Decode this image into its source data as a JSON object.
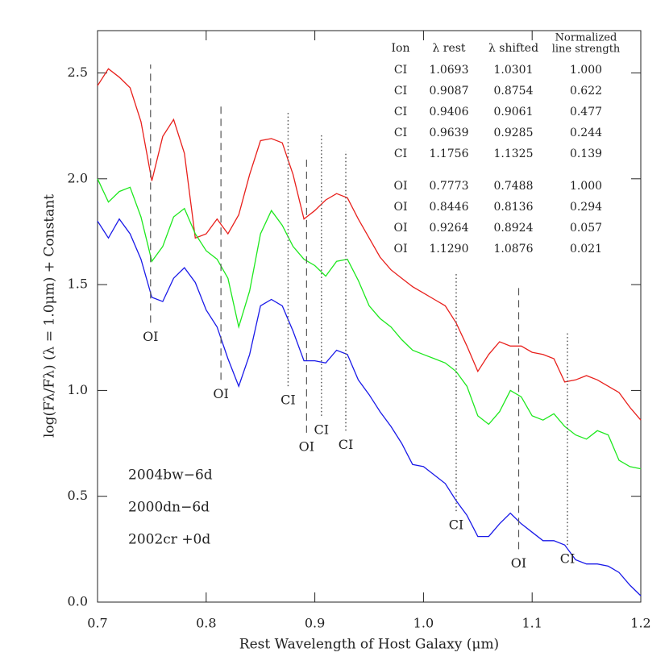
{
  "chart_data": {
    "type": "line",
    "x_label": "Rest Wavelength of Host Galaxy (μm)",
    "y_label": "log(Fλ/Fλ) (λ = 1.0μm) +  Constant",
    "xlim": [
      0.7,
      1.2
    ],
    "ylim": [
      0,
      2.7
    ],
    "xticks": [
      0.7,
      0.8,
      0.9,
      {
        "value": 1,
        "label": "1.0"
      },
      1.1,
      1.2
    ],
    "yticks": [
      {
        "value": 0,
        "label": "0.0"
      },
      0.5,
      {
        "value": 1,
        "label": "1.0"
      },
      1.5,
      {
        "value": 2,
        "label": "2.0"
      },
      2.5
    ],
    "legend": "lower left",
    "x": [
      0.7,
      0.71,
      0.72,
      0.73,
      0.74,
      0.75,
      0.76,
      0.77,
      0.78,
      0.79,
      0.8,
      0.81,
      0.82,
      0.83,
      0.84,
      0.85,
      0.86,
      0.87,
      0.88,
      0.89,
      0.9,
      0.91,
      0.92,
      0.93,
      0.94,
      0.95,
      0.96,
      0.97,
      0.98,
      0.99,
      1.0,
      1.01,
      1.02,
      1.03,
      1.04,
      1.05,
      1.06,
      1.07,
      1.08,
      1.09,
      1.1,
      1.11,
      1.12,
      1.13,
      1.14,
      1.15,
      1.16,
      1.17,
      1.18,
      1.19,
      1.2
    ],
    "series": [
      {
        "name": "2004bw−6d",
        "color": "#e8201c",
        "values": [
          2.44,
          2.52,
          2.48,
          2.43,
          2.27,
          1.99,
          2.2,
          2.28,
          2.12,
          1.72,
          1.74,
          1.81,
          1.74,
          1.83,
          2.02,
          2.18,
          2.19,
          2.17,
          2.02,
          1.81,
          1.85,
          1.9,
          1.93,
          1.91,
          1.81,
          1.72,
          1.63,
          1.57,
          1.53,
          1.49,
          1.46,
          1.43,
          1.4,
          1.32,
          1.21,
          1.09,
          1.17,
          1.23,
          1.21,
          1.21,
          1.18,
          1.17,
          1.15,
          1.04,
          1.05,
          1.07,
          1.05,
          1.02,
          0.99,
          0.92,
          0.86
        ]
      },
      {
        "name": "2000dn−6d",
        "color": "#1ee81e",
        "values": [
          2.0,
          1.89,
          1.94,
          1.96,
          1.82,
          1.61,
          1.68,
          1.82,
          1.86,
          1.74,
          1.66,
          1.62,
          1.53,
          1.3,
          1.47,
          1.74,
          1.85,
          1.78,
          1.68,
          1.62,
          1.59,
          1.54,
          1.61,
          1.62,
          1.52,
          1.4,
          1.34,
          1.3,
          1.24,
          1.19,
          1.17,
          1.15,
          1.13,
          1.09,
          1.02,
          0.88,
          0.84,
          0.9,
          1.0,
          0.97,
          0.88,
          0.86,
          0.89,
          0.83,
          0.79,
          0.77,
          0.81,
          0.79,
          0.67,
          0.64,
          0.63
        ]
      },
      {
        "name": "2002cr +0d",
        "color": "#1a1ae8",
        "values": [
          1.8,
          1.72,
          1.81,
          1.74,
          1.62,
          1.44,
          1.42,
          1.53,
          1.58,
          1.51,
          1.38,
          1.3,
          1.15,
          1.02,
          1.17,
          1.4,
          1.43,
          1.4,
          1.28,
          1.14,
          1.14,
          1.13,
          1.19,
          1.17,
          1.05,
          0.98,
          0.9,
          0.83,
          0.75,
          0.65,
          0.64,
          0.6,
          0.56,
          0.48,
          0.41,
          0.31,
          0.31,
          0.37,
          0.42,
          0.37,
          0.33,
          0.29,
          0.29,
          0.27,
          0.2,
          0.18,
          0.18,
          0.17,
          0.14,
          0.08,
          0.03
        ]
      }
    ],
    "markers": [
      {
        "label": "OI",
        "x": 0.7488,
        "style": "dashed",
        "y_range": [
          1.32,
          2.54
        ]
      },
      {
        "label": "OI",
        "x": 0.8136,
        "style": "dashed",
        "y_range": [
          1.05,
          2.35
        ]
      },
      {
        "label": "CI",
        "x": 0.8754,
        "style": "dotted",
        "y_range": [
          1.02,
          2.32
        ]
      },
      {
        "label": "OI",
        "x": 0.8924,
        "style": "dashed",
        "y_range": [
          0.8,
          2.09
        ]
      },
      {
        "label": "CI",
        "x": 0.9061,
        "style": "dotted",
        "y_range": [
          0.88,
          2.21
        ]
      },
      {
        "label": "CI",
        "x": 0.9285,
        "style": "dotted",
        "y_range": [
          0.81,
          2.13
        ]
      },
      {
        "label": "CI",
        "x": 1.0301,
        "style": "dotted",
        "y_range": [
          0.43,
          1.55
        ]
      },
      {
        "label": "OI",
        "x": 1.0876,
        "style": "dashed",
        "y_range": [
          0.25,
          1.49
        ]
      },
      {
        "label": "CI",
        "x": 1.1325,
        "style": "dotted",
        "y_range": [
          0.27,
          1.28
        ]
      }
    ],
    "table": {
      "headers": [
        "Ion",
        "λ rest",
        "λ shifted",
        [
          "Normalized",
          "line strength"
        ]
      ],
      "groups": [
        [
          [
            "CI",
            "1.0693",
            "1.0301",
            "1.000"
          ],
          [
            "CI",
            "0.9087",
            "0.8754",
            "0.622"
          ],
          [
            "CI",
            "0.9406",
            "0.9061",
            "0.477"
          ],
          [
            "CI",
            "0.9639",
            "0.9285",
            "0.244"
          ],
          [
            "CI",
            "1.1756",
            "1.1325",
            "0.139"
          ]
        ],
        [
          [
            "OI",
            "0.7773",
            "0.7488",
            "1.000"
          ],
          [
            "OI",
            "0.8446",
            "0.8136",
            "0.294"
          ],
          [
            "OI",
            "0.9264",
            "0.8924",
            "0.057"
          ],
          [
            "OI",
            "1.1290",
            "1.0876",
            "0.021"
          ]
        ]
      ]
    }
  }
}
